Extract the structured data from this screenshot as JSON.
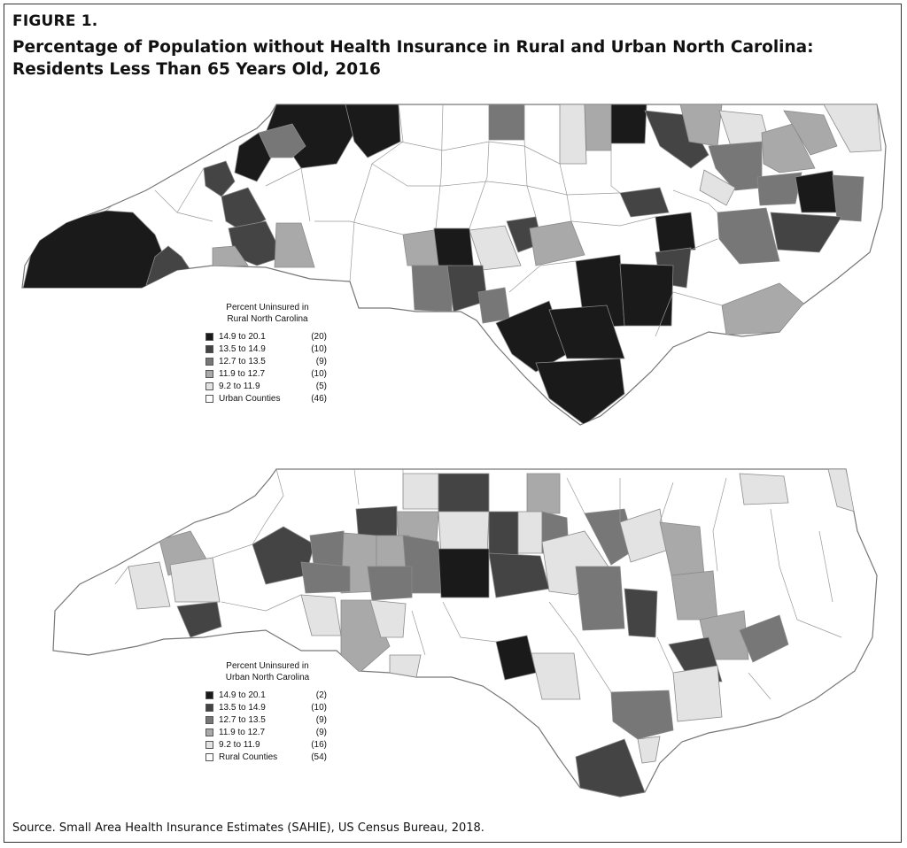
{
  "figure_label": "FIGURE 1.",
  "title": "Percentage of Population without Health Insurance in Rural and Urban North Carolina: Residents Less Than 65 Years Old, 2016",
  "source": "Source. Small Area Health Insurance Estimates (SAHIE), US Census Bureau, 2018.",
  "colors": {
    "class1": "#1a1a1a",
    "class2": "#444444",
    "class3": "#777777",
    "class4": "#a9a9a9",
    "class5": "#e3e3e3",
    "excluded": "#ffffff",
    "border": "#888888"
  },
  "maps": [
    {
      "legend_title_line1": "Percent Uninsured in",
      "legend_title_line2": "Rural North Carolina",
      "legend": [
        {
          "range": "14.9 to 20.1",
          "count": "(20)",
          "class": "class1"
        },
        {
          "range": "13.5 to 14.9",
          "count": "(10)",
          "class": "class2"
        },
        {
          "range": "12.7 to 13.5",
          "count": "(9)",
          "class": "class3"
        },
        {
          "range": "11.9 to 12.7",
          "count": "(10)",
          "class": "class4"
        },
        {
          "range": "9.2 to 11.9",
          "count": "(5)",
          "class": "class5"
        },
        {
          "range": "Urban Counties",
          "count": "(46)",
          "class": "excluded"
        }
      ]
    },
    {
      "legend_title_line1": "Percent Uninsured in",
      "legend_title_line2": "Urban North Carolina",
      "legend": [
        {
          "range": "14.9 to 20.1",
          "count": "(2)",
          "class": "class1"
        },
        {
          "range": "13.5 to 14.9",
          "count": "(10)",
          "class": "class2"
        },
        {
          "range": "12.7 to 13.5",
          "count": "(9)",
          "class": "class3"
        },
        {
          "range": "11.9 to 12.7",
          "count": "(9)",
          "class": "class4"
        },
        {
          "range": "9.2 to 11.9",
          "count": "(16)",
          "class": "class5"
        },
        {
          "range": "Rural Counties",
          "count": "(54)",
          "class": "excluded"
        }
      ]
    }
  ]
}
